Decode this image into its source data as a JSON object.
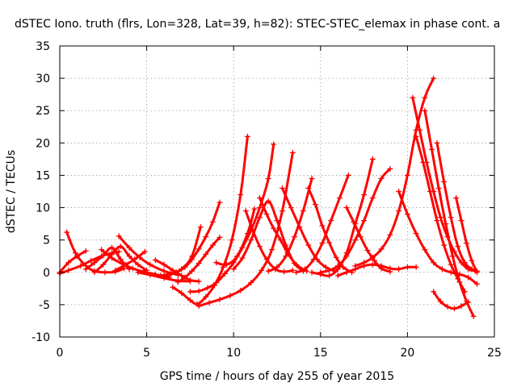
{
  "chart_data": {
    "type": "scatter",
    "title": "dSTEC Iono. truth (flrs, Lon=328, Lat=39, h=82): STEC-STEC_elemax in phase cont. a",
    "xlabel": "GPS time / hours of day 255 of year 2015",
    "ylabel": "dSTEC  / TECUs",
    "xlim": [
      0,
      25
    ],
    "ylim": [
      -10,
      35
    ],
    "xticks": [
      0,
      5,
      10,
      15,
      20,
      25
    ],
    "yticks": [
      -10,
      -5,
      0,
      5,
      10,
      15,
      20,
      25,
      30,
      35
    ],
    "grid": true,
    "color": "#ff0000",
    "marker": "plus",
    "series": [
      {
        "x": [
          0.4,
          0.9,
          1.5,
          2.0,
          2.6,
          3.2,
          3.7
        ],
        "y": [
          6.2,
          3.0,
          1.0,
          0.2,
          0.0,
          0.1,
          0.6
        ]
      },
      {
        "x": [
          0.0,
          0.5,
          1.0,
          1.5
        ],
        "y": [
          0.0,
          1.5,
          2.5,
          3.3
        ]
      },
      {
        "x": [
          0.0,
          0.5,
          1.2,
          1.8,
          2.4,
          3.0,
          3.4
        ],
        "y": [
          -0.2,
          0.3,
          1.0,
          1.8,
          2.5,
          3.0,
          3.2
        ]
      },
      {
        "x": [
          1.5,
          2.0,
          2.5,
          3.0,
          3.5,
          4.0
        ],
        "y": [
          0.5,
          1.5,
          2.6,
          3.8,
          2.0,
          0.5
        ]
      },
      {
        "x": [
          2.0,
          2.5,
          3.0,
          3.5,
          4.0,
          4.5,
          5.0
        ],
        "y": [
          0.0,
          1.2,
          2.8,
          4.0,
          2.5,
          1.2,
          0.3
        ]
      },
      {
        "x": [
          2.4,
          3.0,
          3.6,
          4.2,
          4.8,
          5.5,
          6.3
        ],
        "y": [
          3.5,
          2.2,
          1.3,
          0.6,
          0.1,
          -0.3,
          -0.8
        ]
      },
      {
        "x": [
          3.4,
          4.0,
          4.6,
          5.2,
          6.0,
          6.8
        ],
        "y": [
          5.6,
          3.8,
          2.3,
          1.2,
          0.2,
          -0.4
        ]
      },
      {
        "x": [
          3.2,
          3.8,
          4.3,
          4.9
        ],
        "y": [
          0.3,
          1.2,
          2.0,
          3.2
        ]
      },
      {
        "x": [
          4.5,
          5.2,
          6.0,
          6.8,
          7.5
        ],
        "y": [
          0.0,
          -0.4,
          -0.9,
          -1.3,
          -1.4
        ]
      },
      {
        "x": [
          5.5,
          6.0,
          6.5,
          7.0,
          7.5,
          8.0
        ],
        "y": [
          1.9,
          1.2,
          0.3,
          -0.5,
          -1.2,
          -1.4
        ]
      },
      {
        "x": [
          6.8,
          7.2,
          7.6,
          8.0,
          8.4,
          8.8,
          9.2
        ],
        "y": [
          -1.5,
          -0.8,
          0.2,
          1.4,
          2.8,
          4.2,
          5.4
        ]
      },
      {
        "x": [
          6.2,
          6.7,
          7.2,
          7.6,
          8.0,
          8.4,
          8.8,
          9.2
        ],
        "y": [
          -0.5,
          0.0,
          0.8,
          2.0,
          3.6,
          5.5,
          7.8,
          10.8
        ]
      },
      {
        "x": [
          5.8,
          6.4,
          7.0,
          7.6,
          8.1
        ],
        "y": [
          -0.5,
          -0.2,
          0.5,
          2.5,
          7.0
        ]
      },
      {
        "x": [
          6.5,
          7.0,
          7.5,
          7.9,
          8.4,
          8.9,
          9.4,
          9.9,
          10.4,
          10.8
        ],
        "y": [
          -2.3,
          -3.2,
          -4.3,
          -4.9,
          -3.8,
          -2.0,
          0.8,
          5.0,
          12.0,
          21.0
        ]
      },
      {
        "x": [
          7.5,
          8.0,
          8.5,
          9.0,
          9.5,
          10.0,
          10.5,
          11.0,
          11.5,
          12.0,
          12.3
        ],
        "y": [
          -3.0,
          -2.9,
          -2.4,
          -1.6,
          -0.2,
          1.5,
          3.8,
          6.5,
          10.0,
          14.5,
          19.8
        ]
      },
      {
        "x": [
          8.0,
          8.6,
          9.2,
          9.8,
          10.4,
          11.0,
          11.6,
          12.2,
          12.8,
          13.4
        ],
        "y": [
          -5.2,
          -4.7,
          -4.2,
          -3.6,
          -2.8,
          -1.6,
          0.3,
          3.5,
          9.5,
          18.5
        ]
      },
      {
        "x": [
          9.0,
          9.6,
          10.2,
          10.8,
          11.2
        ],
        "y": [
          1.5,
          1.2,
          2.5,
          6.0,
          9.8
        ]
      },
      {
        "x": [
          10.7,
          11.1,
          11.5,
          11.9,
          12.4,
          12.9,
          13.4
        ],
        "y": [
          9.5,
          6.5,
          4.0,
          2.0,
          0.5,
          0.1,
          0.3
        ]
      },
      {
        "x": [
          10.0,
          10.5,
          11.0,
          11.5,
          12.0,
          12.5,
          13.0,
          13.5,
          14.0
        ],
        "y": [
          0.5,
          2.2,
          5.0,
          8.5,
          11.0,
          8.0,
          4.2,
          1.4,
          0.2
        ]
      },
      {
        "x": [
          11.5,
          11.9,
          12.3,
          12.7,
          13.1,
          13.6,
          14.2
        ],
        "y": [
          11.5,
          9.0,
          6.8,
          5.0,
          3.0,
          1.2,
          0.2
        ]
      },
      {
        "x": [
          12.0,
          12.5,
          13.0,
          13.5,
          14.0,
          14.5
        ],
        "y": [
          0.2,
          0.8,
          2.5,
          5.5,
          9.5,
          14.5
        ]
      },
      {
        "x": [
          12.8,
          13.3,
          13.8,
          14.3,
          14.8,
          15.3,
          15.8
        ],
        "y": [
          13.0,
          10.0,
          7.0,
          4.2,
          2.0,
          0.8,
          0.2
        ]
      },
      {
        "x": [
          13.6,
          14.1,
          14.6,
          15.1,
          15.6,
          16.1,
          16.6
        ],
        "y": [
          0.0,
          0.5,
          2.0,
          4.5,
          8.0,
          11.5,
          15.0
        ]
      },
      {
        "x": [
          14.3,
          14.7,
          15.1,
          15.5,
          15.9,
          16.3,
          16.8
        ],
        "y": [
          13.0,
          10.5,
          7.2,
          4.6,
          2.3,
          0.8,
          0.0
        ]
      },
      {
        "x": [
          14.5,
          15.0,
          15.5,
          16.0,
          16.5,
          17.0,
          17.5,
          18.0
        ],
        "y": [
          0.0,
          -0.3,
          -0.5,
          0.5,
          3.0,
          7.5,
          12.0,
          17.5
        ]
      },
      {
        "x": [
          15.0,
          15.5,
          16.0,
          16.5,
          17.0,
          17.5,
          18.0,
          18.5,
          19.0
        ],
        "y": [
          0.0,
          0.3,
          1.0,
          2.5,
          5.0,
          8.0,
          11.5,
          14.5,
          16.0
        ]
      },
      {
        "x": [
          16.5,
          16.9,
          17.3,
          17.7,
          18.1,
          18.5,
          19.0
        ],
        "y": [
          10.0,
          7.8,
          5.5,
          3.4,
          1.8,
          0.6,
          0.1
        ]
      },
      {
        "x": [
          16.0,
          16.5,
          17.0,
          17.5,
          18.0,
          18.5,
          19.0,
          19.5,
          20.0,
          20.5
        ],
        "y": [
          -0.5,
          0.0,
          0.5,
          1.0,
          1.2,
          1.0,
          0.6,
          0.5,
          0.8,
          0.8
        ]
      },
      {
        "x": [
          17.0,
          17.5,
          18.0,
          18.5,
          19.0,
          19.5,
          20.0,
          20.5,
          21.0,
          21.5
        ],
        "y": [
          1.0,
          1.5,
          2.3,
          3.6,
          5.8,
          9.5,
          15.0,
          22.0,
          27.0,
          30.0
        ]
      },
      {
        "x": [
          19.5,
          20.0,
          20.5,
          21.0,
          21.5,
          22.0,
          22.5,
          23.0,
          23.5,
          24.0
        ],
        "y": [
          12.5,
          9.0,
          6.0,
          3.5,
          1.5,
          0.5,
          0.0,
          -0.3,
          -0.8,
          -1.8
        ]
      },
      {
        "x": [
          20.3,
          20.7,
          21.1,
          21.5,
          21.9,
          22.3,
          22.7,
          23.1,
          23.5,
          23.9
        ],
        "y": [
          27.0,
          22.0,
          17.0,
          12.5,
          8.5,
          5.5,
          3.2,
          1.5,
          0.5,
          0.2
        ]
      },
      {
        "x": [
          20.5,
          20.9,
          21.3,
          21.7,
          22.1,
          22.5,
          22.9,
          23.3
        ],
        "y": [
          21.0,
          17.0,
          12.5,
          8.0,
          4.2,
          1.2,
          -1.0,
          -3.0
        ]
      },
      {
        "x": [
          21.0,
          21.4,
          21.8,
          22.2,
          22.6,
          23.0,
          23.4,
          23.8
        ],
        "y": [
          25.0,
          19.0,
          13.0,
          7.5,
          2.5,
          -1.5,
          -4.5,
          -6.8
        ]
      },
      {
        "x": [
          21.7,
          22.1,
          22.5,
          22.9,
          23.3,
          23.7,
          24.0
        ],
        "y": [
          20.0,
          14.0,
          8.5,
          4.0,
          1.5,
          0.5,
          0.2
        ]
      },
      {
        "x": [
          22.8,
          23.1,
          23.4,
          23.7,
          24.0
        ],
        "y": [
          11.5,
          8.0,
          4.5,
          1.8,
          0.0
        ]
      },
      {
        "x": [
          21.5,
          21.9,
          22.3,
          22.7,
          23.1,
          23.5
        ],
        "y": [
          -3.0,
          -4.5,
          -5.3,
          -5.6,
          -5.2,
          -4.6
        ]
      }
    ]
  }
}
